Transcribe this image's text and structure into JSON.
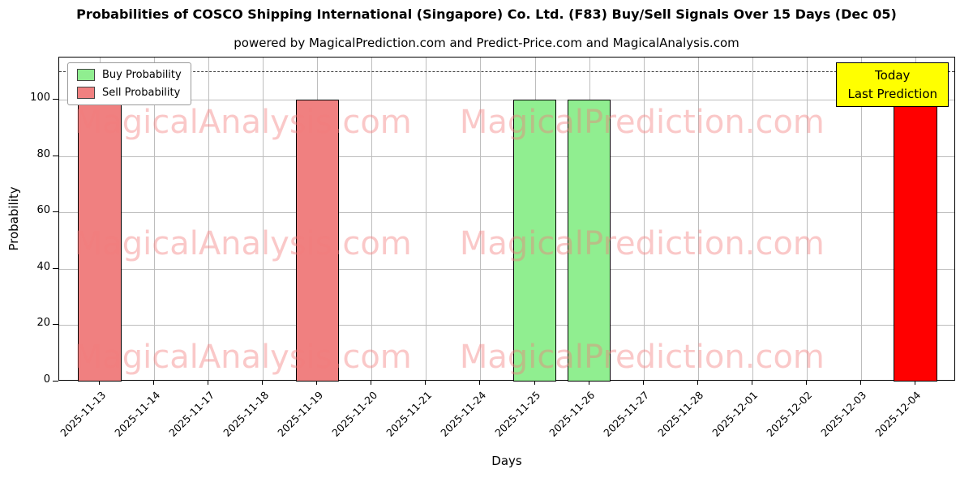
{
  "title": "Probabilities of COSCO Shipping International (Singapore) Co. Ltd. (F83) Buy/Sell Signals Over 15 Days (Dec 05)",
  "subtitle": "powered by MagicalPrediction.com and Predict-Price.com and MagicalAnalysis.com",
  "legend": {
    "buy_label": "Buy Probability",
    "sell_label": "Sell Probability"
  },
  "annotation": {
    "line1": "Today",
    "line2": "Last Prediction"
  },
  "axes": {
    "xlabel": "Days",
    "ylabel": "Probability",
    "yticks": [
      0,
      20,
      40,
      60,
      80,
      100
    ],
    "ylim": [
      0,
      115
    ],
    "dashed_line_y": 110,
    "grid": "on"
  },
  "watermarks": [
    "MagicalAnalysis.com",
    "MagicalPrediction.com"
  ],
  "colors": {
    "buy": "#90ee90",
    "sell": "#f08080",
    "today": "#ff0000",
    "grid": "#bdbdbd",
    "annotation_bg": "#ffff00",
    "watermark": "rgba(242,125,125,0.42)"
  },
  "chart_data": {
    "type": "bar",
    "title": "Probabilities of COSCO Shipping International (Singapore) Co. Ltd. (F83) Buy/Sell Signals Over 15 Days (Dec 05)",
    "xlabel": "Days",
    "ylabel": "Probability",
    "ylim": [
      0,
      115
    ],
    "categories": [
      "2025-11-13",
      "2025-11-14",
      "2025-11-17",
      "2025-11-18",
      "2025-11-19",
      "2025-11-20",
      "2025-11-21",
      "2025-11-24",
      "2025-11-25",
      "2025-11-26",
      "2025-11-27",
      "2025-11-28",
      "2025-12-01",
      "2025-12-02",
      "2025-12-03",
      "2025-12-04"
    ],
    "series": [
      {
        "name": "Buy Probability",
        "color": "#90ee90",
        "values": [
          0,
          0,
          0,
          0,
          0,
          0,
          0,
          0,
          100,
          100,
          0,
          0,
          0,
          0,
          0,
          0
        ]
      },
      {
        "name": "Sell Probability",
        "color": "#f08080",
        "values": [
          100,
          0,
          0,
          0,
          100,
          0,
          0,
          0,
          0,
          0,
          0,
          0,
          0,
          0,
          0,
          0
        ]
      },
      {
        "name": "Today / Last Prediction",
        "color": "#ff0000",
        "values": [
          0,
          0,
          0,
          0,
          0,
          0,
          0,
          0,
          0,
          0,
          0,
          0,
          0,
          0,
          0,
          100
        ]
      }
    ],
    "legend_position": "upper left"
  }
}
